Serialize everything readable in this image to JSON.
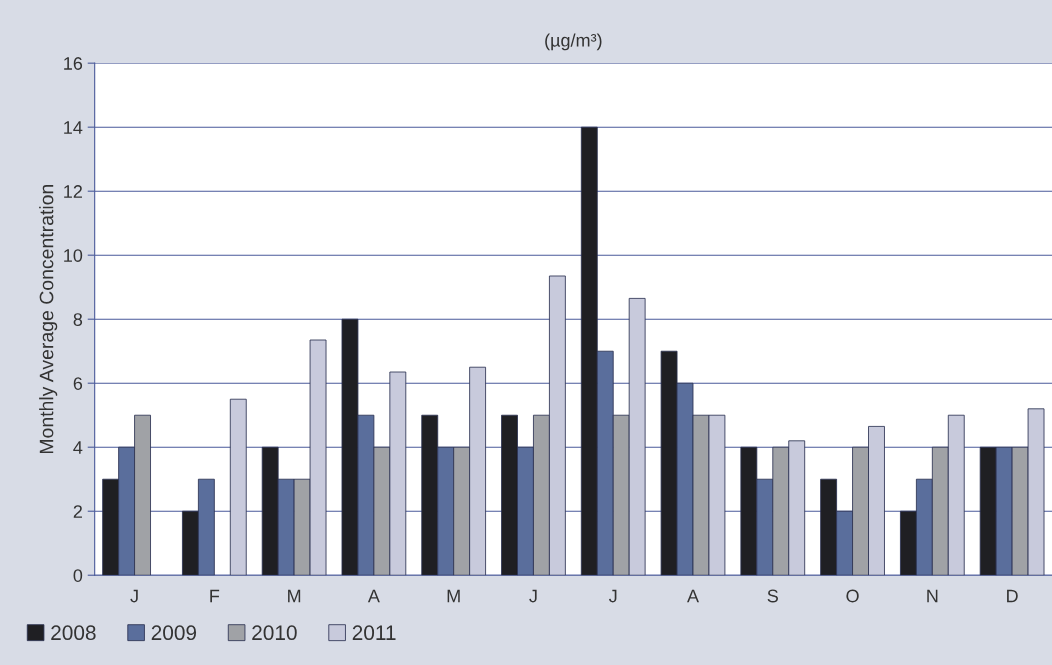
{
  "chart_data": {
    "type": "bar",
    "title": "(µg/m³)",
    "ylabel": "Monthly Average Concentration",
    "categories": [
      "J",
      "F",
      "M",
      "A",
      "M",
      "J",
      "J",
      "A",
      "S",
      "O",
      "N",
      "D"
    ],
    "series": [
      {
        "name": "2008",
        "color": "#1f1f23",
        "values": [
          3,
          2,
          4,
          8,
          5,
          5,
          14,
          7,
          4,
          3,
          2,
          4
        ]
      },
      {
        "name": "2009",
        "color": "#5a6e9c",
        "values": [
          4,
          3,
          3,
          5,
          4,
          4,
          7,
          6,
          3,
          2,
          3,
          4
        ]
      },
      {
        "name": "2010",
        "color": "#a0a2a6",
        "values": [
          5,
          null,
          3,
          4,
          4,
          5,
          5,
          5,
          4,
          4,
          4,
          4
        ]
      },
      {
        "name": "2011",
        "color": "#c8cadc",
        "values": [
          null,
          5.5,
          7.35,
          6.35,
          6.5,
          9.35,
          8.65,
          5,
          4.2,
          4.65,
          5,
          5.2
        ]
      }
    ],
    "ylim": [
      0,
      16
    ],
    "yticks": [
      0,
      2,
      4,
      6,
      8,
      10,
      12,
      14,
      16
    ],
    "grid": "y",
    "legend": "bottom left"
  }
}
